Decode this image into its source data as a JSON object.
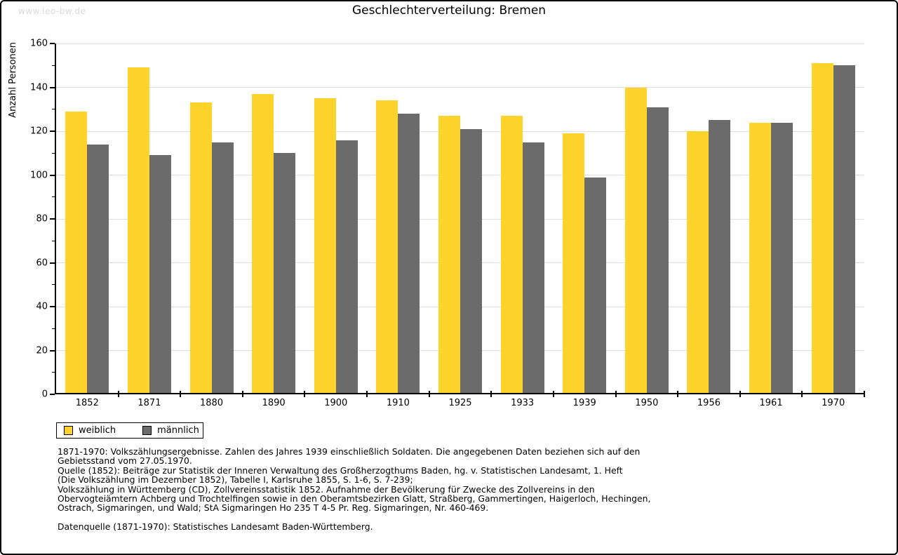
{
  "page": {
    "watermark": "www.leo-bw.de",
    "title": "Geschlechterverteilung: Bremen"
  },
  "chart_data": {
    "type": "bar",
    "title": "Geschlechterverteilung: Bremen",
    "xlabel": "",
    "ylabel": "Anzahl Personen",
    "categories": [
      "1852",
      "1871",
      "1880",
      "1890",
      "1900",
      "1910",
      "1925",
      "1933",
      "1939",
      "1950",
      "1956",
      "1961",
      "1970"
    ],
    "series": [
      {
        "name": "weiblich",
        "color": "#fdd32c",
        "values": [
          129,
          149,
          133,
          137,
          135,
          134,
          127,
          127,
          119,
          140,
          120,
          124,
          151
        ]
      },
      {
        "name": "männlich",
        "color": "#6b6b6b",
        "values": [
          114,
          109,
          115,
          110,
          116,
          128,
          121,
          115,
          99,
          131,
          125,
          124,
          150
        ]
      }
    ],
    "ylim": [
      0,
      160
    ],
    "ytick_step": 20,
    "yminortick_step": 10,
    "grid": true,
    "gridline_color": "#dedede",
    "legend_position": "bottom-left"
  },
  "legend": {
    "items": [
      {
        "label": "weiblich",
        "color": "#fdd32c"
      },
      {
        "label": "männlich",
        "color": "#6b6b6b"
      }
    ]
  },
  "footnotes": {
    "source_lines": [
      "1871-1970: Volkszählungsergebnisse. Zahlen des Jahres 1939 einschließlich Soldaten. Die angegebenen Daten beziehen sich auf den",
      "Gebietsstand vom 27.05.1970.",
      "Quelle (1852): Beiträge zur Statistik der Inneren Verwaltung des Großherzogthums Baden, hg. v. Statistischen Landesamt, 1. Heft",
      "(Die Volkszählung im Dezember 1852), Tabelle I, Karlsruhe 1855, S. 1-6, S. 7-239;",
      "Volkszählung in Württemberg (CD), Zollvereinsstatistik 1852. Aufnahme der Bevölkerung für Zwecke des Zollvereins in den",
      "Obervogteiämtern Achberg und Trochtelfingen sowie in den Oberamtsbezirken Glatt, Straßberg, Gammertingen, Haigerloch, Hechingen,",
      "Ostrach, Sigmaringen, und Wald; StA Sigmaringen Ho 235 T 4-5 Pr. Reg. Sigmaringen, Nr. 460-469."
    ],
    "datasource": "Datenquelle (1871-1970): Statistisches Landesamt Baden-Württemberg."
  }
}
